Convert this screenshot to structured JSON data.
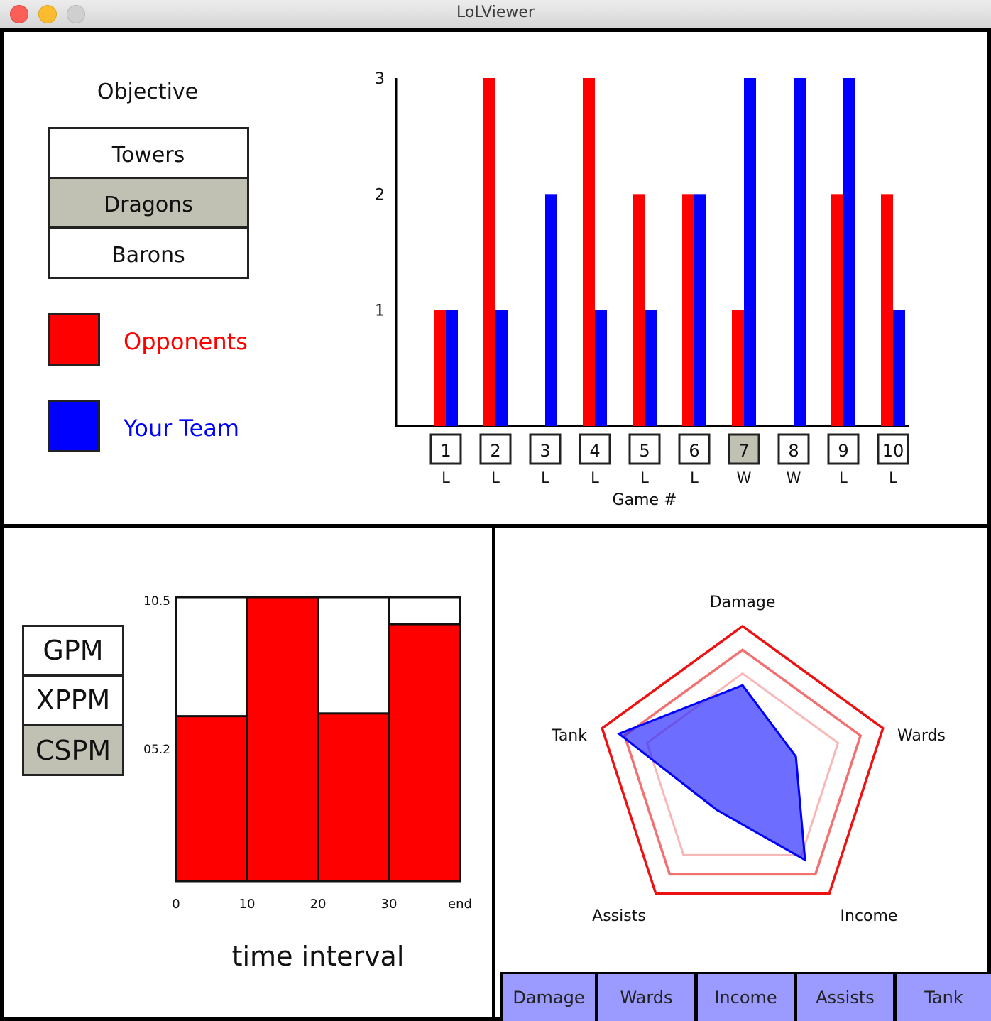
{
  "window": {
    "title": "LoLViewer"
  },
  "objective": {
    "heading": "Objective",
    "buttons": [
      {
        "label": "Towers",
        "selected": false
      },
      {
        "label": "Dragons",
        "selected": true
      },
      {
        "label": "Barons",
        "selected": false
      }
    ]
  },
  "legend": {
    "opponents": {
      "label": "Opponents",
      "color": "#ff0000"
    },
    "team": {
      "label": "Your Team",
      "color": "#0000ff"
    }
  },
  "chart_data": [
    {
      "type": "bar",
      "xlabel": "Game #",
      "ylim": [
        0,
        3
      ],
      "yticks": [
        "1",
        "2",
        "3"
      ],
      "categories": [
        "1",
        "2",
        "3",
        "4",
        "5",
        "6",
        "7",
        "8",
        "9",
        "10"
      ],
      "results": [
        "L",
        "L",
        "L",
        "L",
        "L",
        "L",
        "W",
        "W",
        "L",
        "L"
      ],
      "selected_game": "7",
      "series": [
        {
          "name": "Opponents",
          "color": "#ff0000",
          "values": [
            1,
            3,
            0,
            3,
            2,
            2,
            1,
            0,
            2,
            2
          ]
        },
        {
          "name": "Your Team",
          "color": "#0000ff",
          "values": [
            1,
            1,
            2,
            1,
            1,
            2,
            3,
            3,
            3,
            1
          ]
        }
      ]
    },
    {
      "type": "bar",
      "xlabel": "time interval",
      "yticks": [
        "05.2",
        "10.5"
      ],
      "ylim": [
        0,
        10.5
      ],
      "x_tick_labels": [
        "0",
        "10",
        "20",
        "30",
        "end"
      ],
      "categories": [
        "0-10",
        "10-20",
        "20-30",
        "30-end"
      ],
      "series": [
        {
          "color": "#ff0000",
          "values": [
            6.1,
            10.5,
            6.2,
            9.5
          ]
        }
      ]
    },
    {
      "type": "radar",
      "axes": [
        "Damage",
        "Wards",
        "Income",
        "Assists",
        "Tank"
      ],
      "rings": [
        1.0,
        0.84,
        0.68
      ],
      "series": [
        {
          "color": "#0000ff",
          "values": [
            0.6,
            0.38,
            0.72,
            0.3,
            0.88
          ]
        }
      ]
    }
  ],
  "metrics": {
    "buttons": [
      {
        "label": "GPM",
        "selected": false
      },
      {
        "label": "XPPM",
        "selected": false
      },
      {
        "label": "CSPM",
        "selected": true
      }
    ]
  },
  "radar_tabs": [
    "Damage",
    "Wards",
    "Income",
    "Assists",
    "Tank"
  ]
}
